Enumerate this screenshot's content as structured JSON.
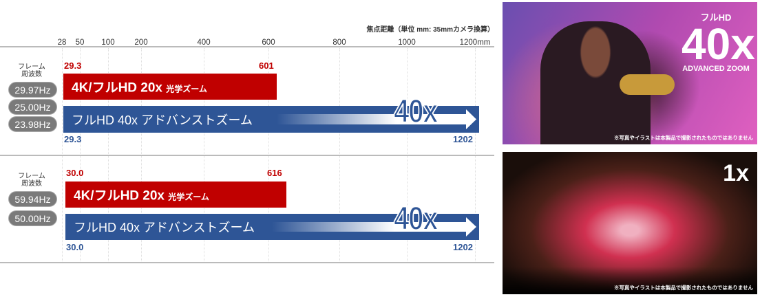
{
  "axis": {
    "unit_label": "焦点距離（単位 mm: 35mmカメラ換算）",
    "ticks": [
      "28",
      "50",
      "100",
      "200",
      "400",
      "600",
      "800",
      "1000",
      "1200mm"
    ],
    "tick_values": [
      28,
      50,
      100,
      200,
      400,
      600,
      800,
      1000,
      1200
    ]
  },
  "colors": {
    "optical": "#c00000",
    "advanced": "#2e5596",
    "pill": "#7a7a7a"
  },
  "sections": [
    {
      "frame_label": "フレーム\n周波数",
      "rates": [
        "29.97Hz",
        "25.00Hz",
        "23.98Hz"
      ],
      "optical": {
        "label": "4K/フルHD 20x",
        "sub": "光学ズーム",
        "min": "29.3",
        "max": "601"
      },
      "advanced": {
        "label": "フルHD 40x アドバンストズーム",
        "badge": "40x",
        "min": "29.3",
        "max": "1202"
      }
    },
    {
      "frame_label": "フレーム\n周波数",
      "rates": [
        "59.94Hz",
        "50.00Hz"
      ],
      "optical": {
        "label": "4K/フルHD 20x",
        "sub": "光学ズーム",
        "min": "30.0",
        "max": "616"
      },
      "advanced": {
        "label": "フルHD 40x アドバンストズーム",
        "badge": "40x",
        "min": "30.0",
        "max": "1202"
      }
    }
  ],
  "photos": [
    {
      "top_label": "フルHD",
      "zoom": "40x",
      "caption": "ADVANCED ZOOM",
      "note": "※写真やイラストは本製品で撮影されたものではありません"
    },
    {
      "zoom": "1x",
      "note": "※写真やイラストは本製品で撮影されたものではありません"
    }
  ]
}
